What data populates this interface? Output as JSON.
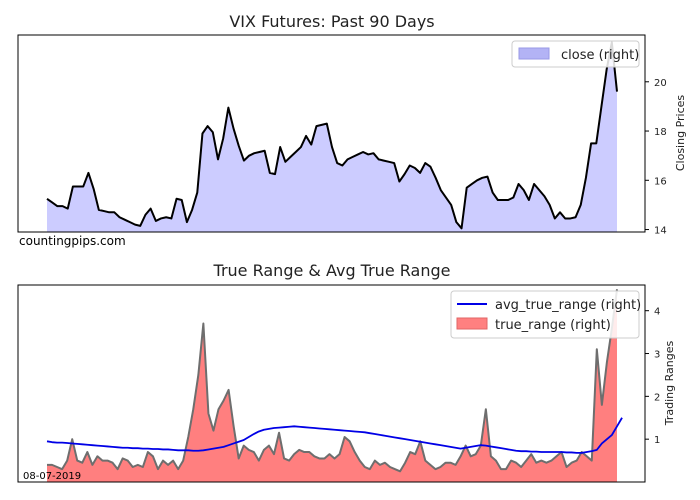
{
  "chart_data": [
    {
      "type": "area",
      "title": "VIX Futures: Past 90 Days",
      "ylabel_right": "Closing Prices",
      "ylim": [
        13.9,
        21.9
      ],
      "yticks": [
        14,
        16,
        18,
        20
      ],
      "legend": {
        "position": "top-right",
        "entries": [
          "close (right)"
        ]
      },
      "watermark": "countingpips.com",
      "colors": {
        "fill": "#ccccff",
        "line": "#000000",
        "legend_fill": "#b3b3f5"
      },
      "series": [
        {
          "name": "close (right)",
          "values": [
            15.25,
            15.1,
            14.95,
            14.95,
            14.85,
            15.75,
            15.75,
            15.75,
            16.3,
            15.65,
            14.8,
            14.75,
            14.7,
            14.7,
            14.5,
            14.4,
            14.3,
            14.2,
            14.15,
            14.6,
            14.85,
            14.35,
            14.45,
            14.5,
            14.45,
            15.25,
            15.2,
            14.3,
            14.8,
            15.5,
            17.9,
            18.2,
            17.95,
            16.85,
            17.7,
            18.95,
            18.1,
            17.4,
            16.8,
            17.0,
            17.1,
            17.15,
            17.2,
            16.3,
            16.25,
            17.35,
            16.75,
            16.95,
            17.15,
            17.35,
            17.8,
            17.45,
            18.2,
            18.25,
            18.3,
            17.35,
            16.7,
            16.6,
            16.85,
            16.95,
            17.05,
            17.15,
            17.05,
            17.1,
            16.85,
            16.8,
            16.75,
            16.7,
            15.95,
            16.25,
            16.6,
            16.5,
            16.3,
            16.7,
            16.55,
            16.1,
            15.6,
            15.3,
            15.0,
            14.3,
            14.05,
            15.7,
            15.85,
            16.0,
            16.1,
            16.15,
            15.5,
            15.2,
            15.2,
            15.2,
            15.3,
            15.85,
            15.6,
            15.2,
            15.85,
            15.6,
            15.35,
            15.0,
            14.45,
            14.7,
            14.45,
            14.45,
            14.5,
            15.0,
            16.1,
            17.5,
            17.5,
            19.0,
            20.5,
            21.6,
            19.6
          ]
        }
      ]
    },
    {
      "type": "area",
      "title": "True Range & Avg True Range",
      "ylabel_right": "Trading Ranges",
      "ylim": [
        0,
        4.6
      ],
      "yticks": [
        1,
        2,
        3,
        4
      ],
      "legend": {
        "position": "top-right",
        "entries": [
          "avg_true_range (right)",
          "true_range (right)"
        ]
      },
      "date_label": "08-07-2019",
      "colors": {
        "tr_fill": "#ff7f7f",
        "tr_line": "#6e6e6e",
        "atr_line": "#0000e6",
        "legend_fill": "#ff8080"
      },
      "series": [
        {
          "name": "true_range (right)",
          "values": [
            0.4,
            0.4,
            0.35,
            0.3,
            0.5,
            1.0,
            0.5,
            0.45,
            0.7,
            0.4,
            0.6,
            0.5,
            0.5,
            0.45,
            0.3,
            0.55,
            0.5,
            0.35,
            0.4,
            0.35,
            0.7,
            0.6,
            0.3,
            0.5,
            0.4,
            0.5,
            0.3,
            0.5,
            1.05,
            1.7,
            2.5,
            3.7,
            1.6,
            1.2,
            1.7,
            1.9,
            2.15,
            1.3,
            0.55,
            0.85,
            0.75,
            0.7,
            0.5,
            0.75,
            0.85,
            0.65,
            1.15,
            0.55,
            0.5,
            0.65,
            0.75,
            0.7,
            0.7,
            0.6,
            0.55,
            0.55,
            0.65,
            0.55,
            0.65,
            1.05,
            0.95,
            0.7,
            0.5,
            0.35,
            0.3,
            0.5,
            0.4,
            0.45,
            0.35,
            0.3,
            0.25,
            0.45,
            0.7,
            0.65,
            0.95,
            0.5,
            0.4,
            0.3,
            0.35,
            0.45,
            0.45,
            0.4,
            0.6,
            0.85,
            0.6,
            0.65,
            0.85,
            1.7,
            0.6,
            0.5,
            0.3,
            0.3,
            0.5,
            0.45,
            0.35,
            0.5,
            0.65,
            0.45,
            0.5,
            0.45,
            0.5,
            0.6,
            0.7,
            0.35,
            0.45,
            0.5,
            0.7,
            0.6,
            0.5,
            3.1,
            1.8,
            2.8,
            3.6,
            4.5
          ]
        },
        {
          "name": "avg_true_range (right)",
          "values": [
            0.95,
            0.93,
            0.92,
            0.92,
            0.91,
            0.9,
            0.89,
            0.88,
            0.87,
            0.86,
            0.85,
            0.84,
            0.83,
            0.82,
            0.81,
            0.8,
            0.8,
            0.79,
            0.79,
            0.78,
            0.78,
            0.77,
            0.77,
            0.76,
            0.76,
            0.75,
            0.74,
            0.74,
            0.74,
            0.73,
            0.73,
            0.74,
            0.76,
            0.78,
            0.8,
            0.82,
            0.86,
            0.9,
            0.94,
            0.98,
            1.05,
            1.12,
            1.18,
            1.22,
            1.24,
            1.26,
            1.27,
            1.28,
            1.29,
            1.3,
            1.29,
            1.28,
            1.27,
            1.26,
            1.25,
            1.24,
            1.23,
            1.22,
            1.21,
            1.2,
            1.19,
            1.18,
            1.17,
            1.16,
            1.14,
            1.12,
            1.1,
            1.08,
            1.06,
            1.04,
            1.02,
            1.0,
            0.98,
            0.96,
            0.94,
            0.92,
            0.9,
            0.88,
            0.86,
            0.84,
            0.82,
            0.8,
            0.78,
            0.8,
            0.82,
            0.84,
            0.86,
            0.85,
            0.83,
            0.81,
            0.79,
            0.77,
            0.75,
            0.73,
            0.72,
            0.72,
            0.71,
            0.71,
            0.7,
            0.7,
            0.7,
            0.7,
            0.7,
            0.69,
            0.69,
            0.68,
            0.68,
            0.7,
            0.72,
            0.75,
            0.9,
            1.0,
            1.1,
            1.3,
            1.5
          ]
        }
      ]
    }
  ]
}
